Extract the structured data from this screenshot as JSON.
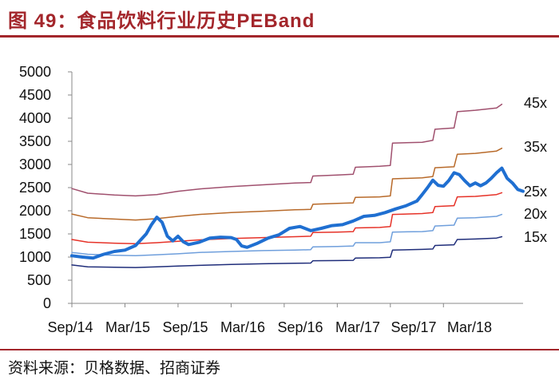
{
  "figure": {
    "title": "图 49：食品饮料行业历史PEBand",
    "source": "资料来源：贝格数据、招商证券"
  },
  "chart_data": {
    "type": "line",
    "ylim": [
      0,
      5000
    ],
    "yticks": [
      0,
      500,
      1000,
      1500,
      2000,
      2500,
      3000,
      3500,
      4000,
      4500,
      5000
    ],
    "xrange": [
      "2014-09",
      "2018-11"
    ],
    "xticks": [
      "Sep/14",
      "Mar/15",
      "Sep/15",
      "Mar/16",
      "Sep/16",
      "Mar/17",
      "Sep/17",
      "Mar/18"
    ],
    "grid": false,
    "legend": "none",
    "series": [
      {
        "name": "45x",
        "color": "#a0506e",
        "width": 1.5,
        "points": [
          [
            2014.7,
            2480
          ],
          [
            2014.85,
            2380
          ],
          [
            2015.1,
            2340
          ],
          [
            2015.3,
            2320
          ],
          [
            2015.5,
            2350
          ],
          [
            2015.7,
            2420
          ],
          [
            2015.9,
            2470
          ],
          [
            2016.2,
            2520
          ],
          [
            2016.5,
            2560
          ],
          [
            2016.8,
            2600
          ],
          [
            2016.95,
            2610
          ],
          [
            2016.97,
            2750
          ],
          [
            2017.2,
            2770
          ],
          [
            2017.35,
            2790
          ],
          [
            2017.37,
            2940
          ],
          [
            2017.6,
            2960
          ],
          [
            2017.7,
            2980
          ],
          [
            2017.72,
            3460
          ],
          [
            2018.0,
            3480
          ],
          [
            2018.1,
            3520
          ],
          [
            2018.12,
            3760
          ],
          [
            2018.3,
            3790
          ],
          [
            2018.33,
            4140
          ],
          [
            2018.5,
            4170
          ],
          [
            2018.7,
            4220
          ],
          [
            2018.75,
            4300
          ]
        ]
      },
      {
        "name": "35x",
        "color": "#b86a2a",
        "width": 1.5,
        "points": [
          [
            2014.7,
            1930
          ],
          [
            2014.85,
            1850
          ],
          [
            2015.1,
            1820
          ],
          [
            2015.3,
            1800
          ],
          [
            2015.5,
            1830
          ],
          [
            2015.7,
            1880
          ],
          [
            2015.9,
            1920
          ],
          [
            2016.2,
            1960
          ],
          [
            2016.5,
            1990
          ],
          [
            2016.8,
            2020
          ],
          [
            2016.95,
            2030
          ],
          [
            2016.97,
            2140
          ],
          [
            2017.2,
            2160
          ],
          [
            2017.35,
            2170
          ],
          [
            2017.37,
            2290
          ],
          [
            2017.6,
            2300
          ],
          [
            2017.7,
            2320
          ],
          [
            2017.72,
            2690
          ],
          [
            2018.0,
            2710
          ],
          [
            2018.1,
            2740
          ],
          [
            2018.12,
            2930
          ],
          [
            2018.3,
            2950
          ],
          [
            2018.33,
            3220
          ],
          [
            2018.5,
            3240
          ],
          [
            2018.7,
            3290
          ],
          [
            2018.75,
            3350
          ]
        ]
      },
      {
        "name": "25x",
        "color": "#e63228",
        "width": 1.5,
        "points": [
          [
            2014.7,
            1380
          ],
          [
            2014.85,
            1320
          ],
          [
            2015.1,
            1300
          ],
          [
            2015.3,
            1290
          ],
          [
            2015.5,
            1310
          ],
          [
            2015.7,
            1340
          ],
          [
            2015.9,
            1370
          ],
          [
            2016.2,
            1400
          ],
          [
            2016.5,
            1420
          ],
          [
            2016.8,
            1440
          ],
          [
            2016.95,
            1450
          ],
          [
            2016.97,
            1530
          ],
          [
            2017.2,
            1540
          ],
          [
            2017.35,
            1550
          ],
          [
            2017.37,
            1630
          ],
          [
            2017.6,
            1640
          ],
          [
            2017.7,
            1660
          ],
          [
            2017.72,
            1920
          ],
          [
            2018.0,
            1940
          ],
          [
            2018.1,
            1960
          ],
          [
            2018.12,
            2090
          ],
          [
            2018.3,
            2110
          ],
          [
            2018.33,
            2300
          ],
          [
            2018.5,
            2310
          ],
          [
            2018.7,
            2350
          ],
          [
            2018.75,
            2390
          ]
        ]
      },
      {
        "name": "20x",
        "color": "#6f9fdc",
        "width": 1.5,
        "points": [
          [
            2014.7,
            1100
          ],
          [
            2014.85,
            1060
          ],
          [
            2015.1,
            1040
          ],
          [
            2015.3,
            1030
          ],
          [
            2015.5,
            1050
          ],
          [
            2015.7,
            1070
          ],
          [
            2015.9,
            1100
          ],
          [
            2016.2,
            1120
          ],
          [
            2016.5,
            1140
          ],
          [
            2016.8,
            1150
          ],
          [
            2016.95,
            1160
          ],
          [
            2016.97,
            1220
          ],
          [
            2017.2,
            1230
          ],
          [
            2017.35,
            1240
          ],
          [
            2017.37,
            1310
          ],
          [
            2017.6,
            1310
          ],
          [
            2017.7,
            1330
          ],
          [
            2017.72,
            1540
          ],
          [
            2018.0,
            1550
          ],
          [
            2018.1,
            1570
          ],
          [
            2018.12,
            1670
          ],
          [
            2018.3,
            1690
          ],
          [
            2018.33,
            1840
          ],
          [
            2018.5,
            1850
          ],
          [
            2018.7,
            1880
          ],
          [
            2018.75,
            1920
          ]
        ]
      },
      {
        "name": "15x",
        "color": "#1f2d7a",
        "width": 1.5,
        "points": [
          [
            2014.7,
            830
          ],
          [
            2014.85,
            790
          ],
          [
            2015.1,
            780
          ],
          [
            2015.3,
            775
          ],
          [
            2015.5,
            790
          ],
          [
            2015.7,
            805
          ],
          [
            2015.9,
            820
          ],
          [
            2016.2,
            840
          ],
          [
            2016.5,
            855
          ],
          [
            2016.8,
            865
          ],
          [
            2016.95,
            870
          ],
          [
            2016.97,
            920
          ],
          [
            2017.2,
            925
          ],
          [
            2017.35,
            930
          ],
          [
            2017.37,
            980
          ],
          [
            2017.6,
            985
          ],
          [
            2017.7,
            995
          ],
          [
            2017.72,
            1150
          ],
          [
            2018.0,
            1165
          ],
          [
            2018.1,
            1175
          ],
          [
            2018.12,
            1250
          ],
          [
            2018.3,
            1265
          ],
          [
            2018.33,
            1380
          ],
          [
            2018.5,
            1390
          ],
          [
            2018.7,
            1410
          ],
          [
            2018.75,
            1440
          ]
        ]
      },
      {
        "name": "",
        "color": "#1f6fd1",
        "width": 4,
        "points": [
          [
            2014.7,
            1030
          ],
          [
            2014.8,
            1000
          ],
          [
            2014.9,
            980
          ],
          [
            2015.0,
            1060
          ],
          [
            2015.1,
            1120
          ],
          [
            2015.2,
            1150
          ],
          [
            2015.3,
            1250
          ],
          [
            2015.4,
            1500
          ],
          [
            2015.45,
            1700
          ],
          [
            2015.5,
            1860
          ],
          [
            2015.55,
            1750
          ],
          [
            2015.6,
            1450
          ],
          [
            2015.65,
            1350
          ],
          [
            2015.7,
            1450
          ],
          [
            2015.75,
            1330
          ],
          [
            2015.8,
            1270
          ],
          [
            2015.9,
            1320
          ],
          [
            2016.0,
            1410
          ],
          [
            2016.1,
            1430
          ],
          [
            2016.2,
            1420
          ],
          [
            2016.25,
            1380
          ],
          [
            2016.3,
            1240
          ],
          [
            2016.35,
            1210
          ],
          [
            2016.45,
            1300
          ],
          [
            2016.55,
            1410
          ],
          [
            2016.65,
            1480
          ],
          [
            2016.75,
            1620
          ],
          [
            2016.85,
            1660
          ],
          [
            2016.95,
            1570
          ],
          [
            2017.05,
            1620
          ],
          [
            2017.15,
            1680
          ],
          [
            2017.25,
            1700
          ],
          [
            2017.35,
            1780
          ],
          [
            2017.45,
            1880
          ],
          [
            2017.55,
            1900
          ],
          [
            2017.65,
            1960
          ],
          [
            2017.75,
            2040
          ],
          [
            2017.85,
            2110
          ],
          [
            2017.95,
            2210
          ],
          [
            2018.0,
            2350
          ],
          [
            2018.05,
            2500
          ],
          [
            2018.1,
            2660
          ],
          [
            2018.15,
            2550
          ],
          [
            2018.2,
            2530
          ],
          [
            2018.25,
            2650
          ],
          [
            2018.3,
            2820
          ],
          [
            2018.35,
            2780
          ],
          [
            2018.4,
            2650
          ],
          [
            2018.45,
            2540
          ],
          [
            2018.5,
            2600
          ],
          [
            2018.55,
            2540
          ],
          [
            2018.6,
            2600
          ],
          [
            2018.65,
            2700
          ],
          [
            2018.7,
            2820
          ],
          [
            2018.75,
            2920
          ],
          [
            2018.8,
            2700
          ],
          [
            2018.85,
            2600
          ],
          [
            2018.9,
            2460
          ],
          [
            2018.95,
            2420
          ]
        ]
      }
    ],
    "band_labels": [
      {
        "series": "45x",
        "text": "45x"
      },
      {
        "series": "35x",
        "text": "35x"
      },
      {
        "series": "25x",
        "text": "25x"
      },
      {
        "series": "20x",
        "text": "20x"
      },
      {
        "series": "15x",
        "text": "15x"
      }
    ]
  }
}
